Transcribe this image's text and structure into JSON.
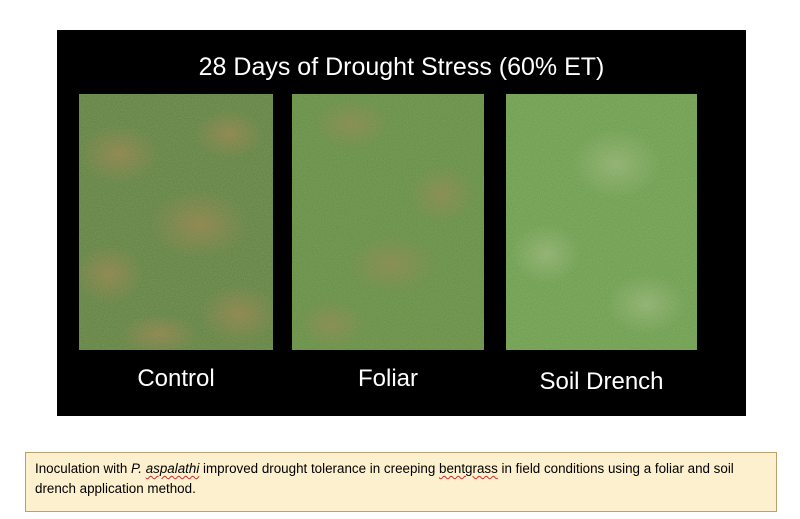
{
  "slide": {
    "title": "28 Days of Drought Stress (60% ET)",
    "panels": [
      {
        "label": "Control",
        "photo": "turfgrass-plot-photo-control",
        "base_color": "#5e7c3c"
      },
      {
        "label": "Foliar",
        "photo": "turfgrass-plot-photo-foliar",
        "base_color": "#638a3f"
      },
      {
        "label": "Soil Drench",
        "photo": "turfgrass-plot-photo-soil-drench",
        "base_color": "#6a9a47"
      }
    ]
  },
  "caption": {
    "part1": "Inoculation with ",
    "species_genus": "P.",
    "species_epithet": "aspalathi",
    "part2": " improved drought tolerance in creeping ",
    "flagged_word": "bentgrass",
    "part3": " in field conditions using a foliar and soil drench application method.",
    "box_color": "#fdf0cf",
    "spellcheck_color": "#d22b2b"
  }
}
